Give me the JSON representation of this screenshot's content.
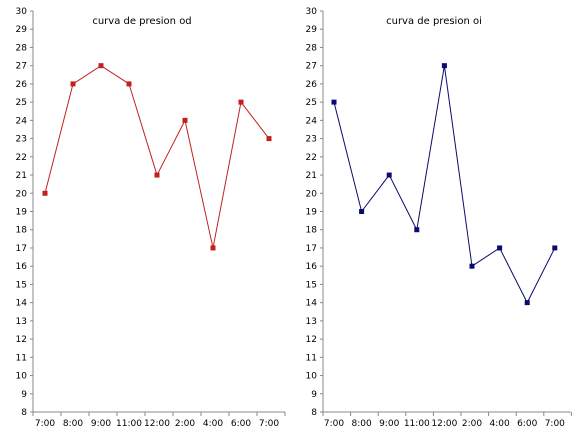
{
  "chart_data": [
    {
      "type": "line",
      "title": "curva de presion od",
      "categories": [
        "7:00",
        "8:00",
        "9:00",
        "11:00",
        "12:00",
        "2:00",
        "4:00",
        "6:00",
        "7:00"
      ],
      "series": [
        {
          "values": [
            20,
            26,
            27,
            26,
            21,
            24,
            17,
            25,
            23
          ],
          "color": "#c0211f"
        }
      ],
      "ylim": [
        8,
        30
      ],
      "yticks": [
        8,
        9,
        10,
        11,
        12,
        13,
        14,
        15,
        16,
        17,
        18,
        19,
        20,
        21,
        22,
        23,
        24,
        25,
        26,
        27,
        28,
        29,
        30
      ],
      "grid": false,
      "marker": "square"
    },
    {
      "type": "line",
      "title": "curva de presion oi",
      "categories": [
        "7:00",
        "8:00",
        "9:00",
        "11:00",
        "12:00",
        "2:00",
        "4:00",
        "6:00",
        "7:00"
      ],
      "series": [
        {
          "values": [
            25,
            19,
            21,
            18,
            27,
            16,
            17,
            14,
            17
          ],
          "color": "#0b0b6e"
        }
      ],
      "ylim": [
        8,
        30
      ],
      "yticks": [
        8,
        9,
        10,
        11,
        12,
        13,
        14,
        15,
        16,
        17,
        18,
        19,
        20,
        21,
        22,
        23,
        24,
        25,
        26,
        27,
        28,
        29,
        30
      ],
      "grid": false,
      "marker": "square"
    }
  ]
}
